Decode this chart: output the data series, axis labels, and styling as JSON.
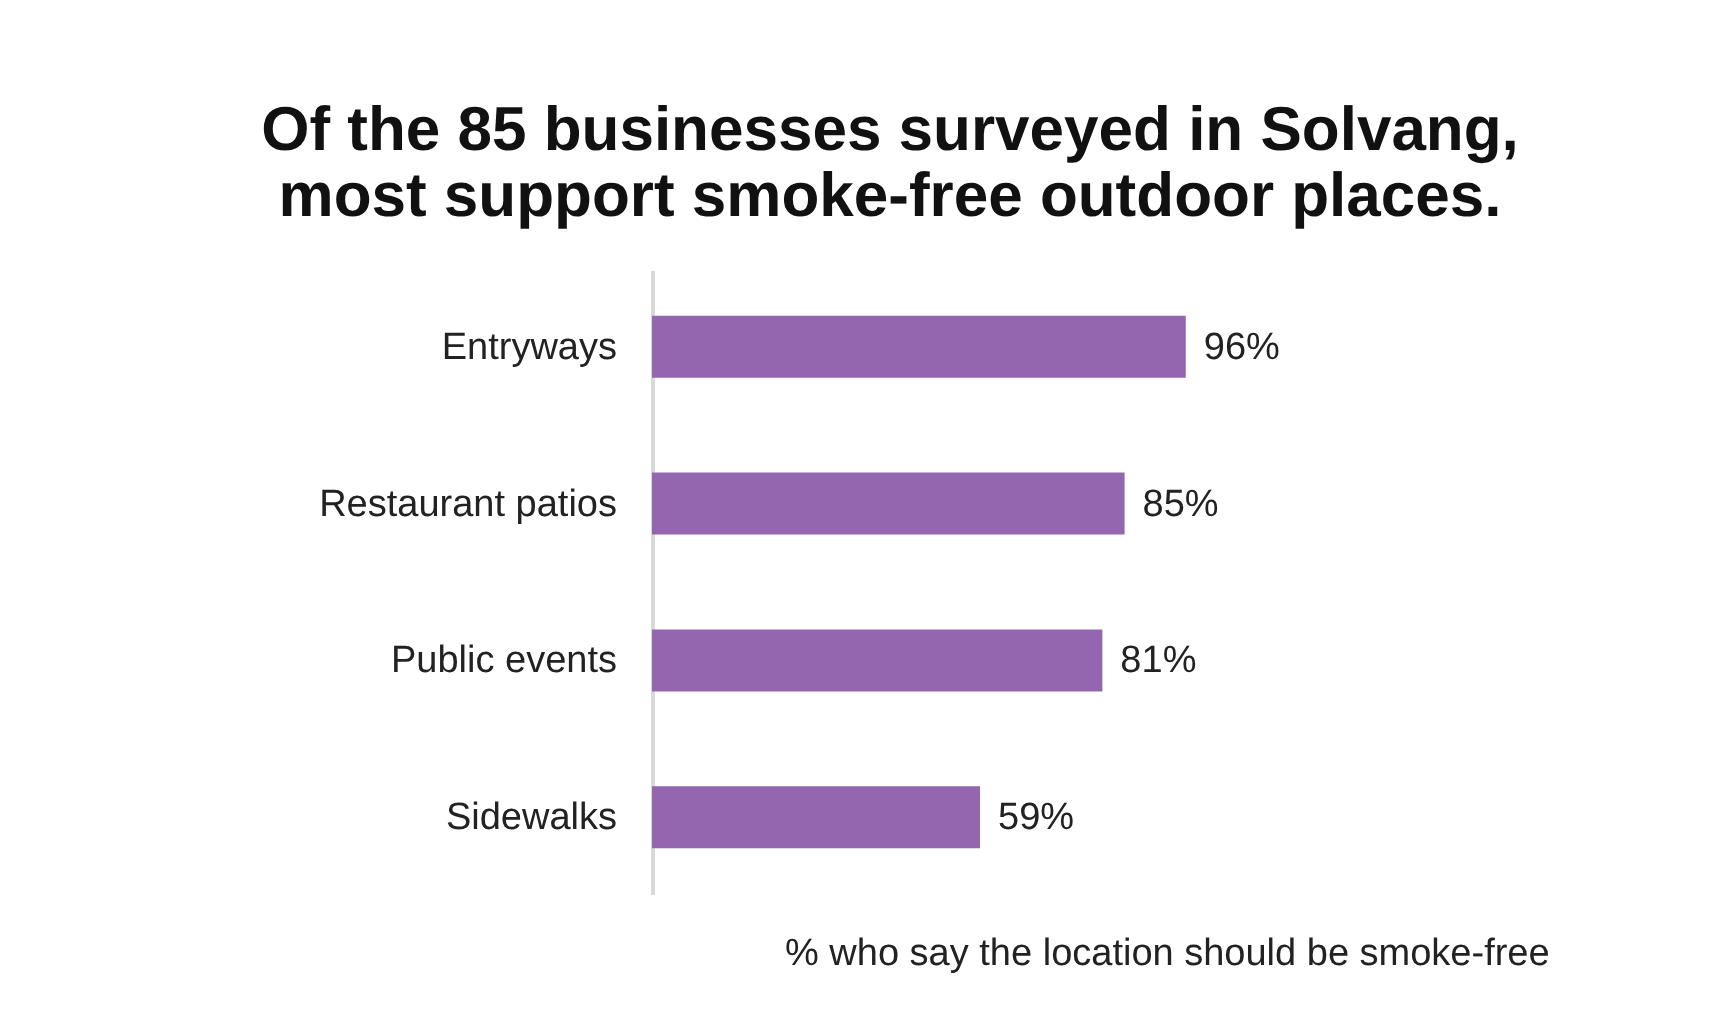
{
  "chart_data": {
    "type": "bar",
    "orientation": "horizontal",
    "title": [
      "Of the 85 businesses surveyed in Solvang,",
      "most support smoke-free outdoor places."
    ],
    "categories": [
      "Entryways",
      "Restaurant patios",
      "Public events",
      "Sidewalks"
    ],
    "values": [
      96,
      85,
      81,
      59
    ],
    "value_labels": [
      "96%",
      "85%",
      "81%",
      "59%"
    ],
    "color": "#9466b0",
    "tick_labels": "y",
    "grid": false,
    "xlabel": "% who say the location should be smoke-free"
  }
}
